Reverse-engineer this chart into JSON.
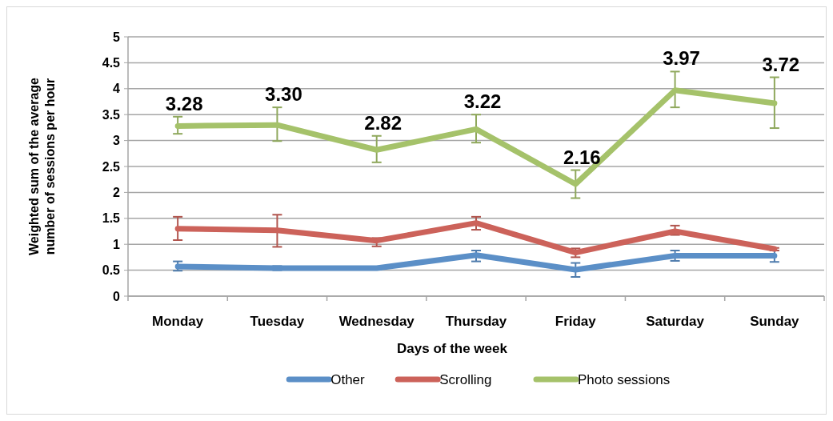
{
  "chart_data": {
    "type": "line",
    "xlabel": "Days of the week",
    "ylabel": "Weighted sum of the average number of sessions per hour",
    "categories": [
      "Monday",
      "Tuesday",
      "Wednesday",
      "Thursday",
      "Friday",
      "Saturday",
      "Sunday"
    ],
    "series": [
      {
        "name": "Other",
        "color": "#5b8fc7",
        "values": [
          0.57,
          0.54,
          0.54,
          0.79,
          0.51,
          0.78,
          0.78
        ],
        "errors": [
          [
            0.49,
            0.67
          ],
          [
            0.5,
            0.58
          ],
          [
            0.51,
            0.57
          ],
          [
            0.67,
            0.88
          ],
          [
            0.37,
            0.64
          ],
          [
            0.68,
            0.88
          ],
          [
            0.66,
            0.88
          ]
        ]
      },
      {
        "name": "Scrolling",
        "color": "#cc625a",
        "values": [
          1.3,
          1.27,
          1.07,
          1.41,
          0.84,
          1.25,
          0.91
        ],
        "errors": [
          [
            1.08,
            1.53
          ],
          [
            0.95,
            1.57
          ],
          [
            0.96,
            1.12
          ],
          [
            1.28,
            1.53
          ],
          [
            0.75,
            0.92
          ],
          [
            1.18,
            1.36
          ],
          [
            0.88,
            0.93
          ]
        ]
      },
      {
        "name": "Photo sessions",
        "color": "#a5c26a",
        "values": [
          3.28,
          3.3,
          2.82,
          3.22,
          2.16,
          3.97,
          3.72
        ],
        "errors": [
          [
            3.13,
            3.46
          ],
          [
            2.99,
            3.64
          ],
          [
            2.58,
            3.09
          ],
          [
            2.96,
            3.5
          ],
          [
            1.89,
            2.43
          ],
          [
            3.64,
            4.33
          ],
          [
            3.24,
            4.22
          ]
        ],
        "value_labels": [
          "3.28",
          "3.30",
          "2.82",
          "3.22",
          "2.16",
          "3.97",
          "3.72"
        ]
      }
    ],
    "ylim": [
      0,
      5
    ],
    "yticks": [
      0,
      0.5,
      1,
      1.5,
      2,
      2.5,
      3,
      3.5,
      4,
      4.5,
      5
    ],
    "grid": "y",
    "legend": "bottom",
    "marker": "none",
    "line_style": "solid"
  }
}
